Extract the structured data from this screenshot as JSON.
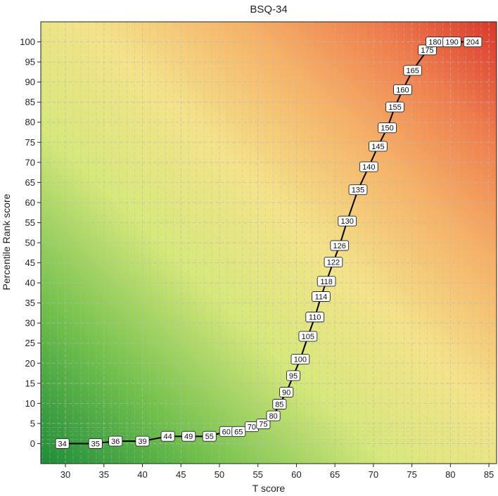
{
  "chart_data": {
    "type": "line",
    "title": "BSQ-34",
    "xlabel": "T score",
    "ylabel": "Percentile Rank score",
    "xlim": [
      26.8,
      86.0
    ],
    "ylim": [
      -5,
      105
    ],
    "xticks": [
      30,
      35,
      40,
      45,
      50,
      55,
      60,
      65,
      70,
      75,
      80,
      85
    ],
    "yticks": [
      0,
      5,
      10,
      15,
      20,
      25,
      30,
      35,
      40,
      45,
      50,
      55,
      60,
      65,
      70,
      75,
      80,
      85,
      90,
      95,
      100
    ],
    "grid": true,
    "background": "gradient green (low-left) to yellow to red (top-right)",
    "colors": {
      "low": "#1e8c3a",
      "mid": "#f2e38a",
      "high": "#d9372b",
      "line": "#000000"
    },
    "series": [
      {
        "points": [
          {
            "x": 29.6,
            "y": 0.0,
            "label": "34"
          },
          {
            "x": 33.9,
            "y": 0.0,
            "label": "35"
          },
          {
            "x": 36.5,
            "y": 0.6,
            "label": "36"
          },
          {
            "x": 40.0,
            "y": 0.6,
            "label": "39"
          },
          {
            "x": 43.3,
            "y": 1.8,
            "label": "44"
          },
          {
            "x": 46.0,
            "y": 1.8,
            "label": "49"
          },
          {
            "x": 48.7,
            "y": 1.8,
            "label": "55"
          },
          {
            "x": 50.9,
            "y": 3.0,
            "label": "60"
          },
          {
            "x": 52.5,
            "y": 3.0,
            "label": "65"
          },
          {
            "x": 54.2,
            "y": 4.2,
            "label": "70"
          },
          {
            "x": 55.7,
            "y": 4.9,
            "label": "75"
          },
          {
            "x": 57.0,
            "y": 6.9,
            "label": "80"
          },
          {
            "x": 57.8,
            "y": 9.8,
            "label": "85"
          },
          {
            "x": 58.7,
            "y": 12.8,
            "label": "90"
          },
          {
            "x": 59.6,
            "y": 16.9,
            "label": "95"
          },
          {
            "x": 60.5,
            "y": 21.0,
            "label": "100"
          },
          {
            "x": 61.5,
            "y": 26.7,
            "label": "105"
          },
          {
            "x": 62.4,
            "y": 31.5,
            "label": "110"
          },
          {
            "x": 63.2,
            "y": 36.6,
            "label": "114"
          },
          {
            "x": 63.9,
            "y": 40.4,
            "label": "118"
          },
          {
            "x": 64.8,
            "y": 45.2,
            "label": "122"
          },
          {
            "x": 65.6,
            "y": 49.3,
            "label": "126"
          },
          {
            "x": 66.6,
            "y": 55.4,
            "label": "130"
          },
          {
            "x": 68.0,
            "y": 63.2,
            "label": "135"
          },
          {
            "x": 69.4,
            "y": 68.9,
            "label": "140"
          },
          {
            "x": 70.6,
            "y": 74.0,
            "label": "145"
          },
          {
            "x": 71.8,
            "y": 78.6,
            "label": "150"
          },
          {
            "x": 72.8,
            "y": 83.8,
            "label": "155"
          },
          {
            "x": 73.8,
            "y": 88.1,
            "label": "160"
          },
          {
            "x": 75.1,
            "y": 92.9,
            "label": "165"
          },
          {
            "x": 77.0,
            "y": 98.0,
            "label": "175"
          },
          {
            "x": 78.0,
            "y": 100.0,
            "label": "180"
          },
          {
            "x": 80.2,
            "y": 100.0,
            "label": "190"
          },
          {
            "x": 82.9,
            "y": 100.0,
            "label": "204"
          }
        ]
      }
    ]
  }
}
